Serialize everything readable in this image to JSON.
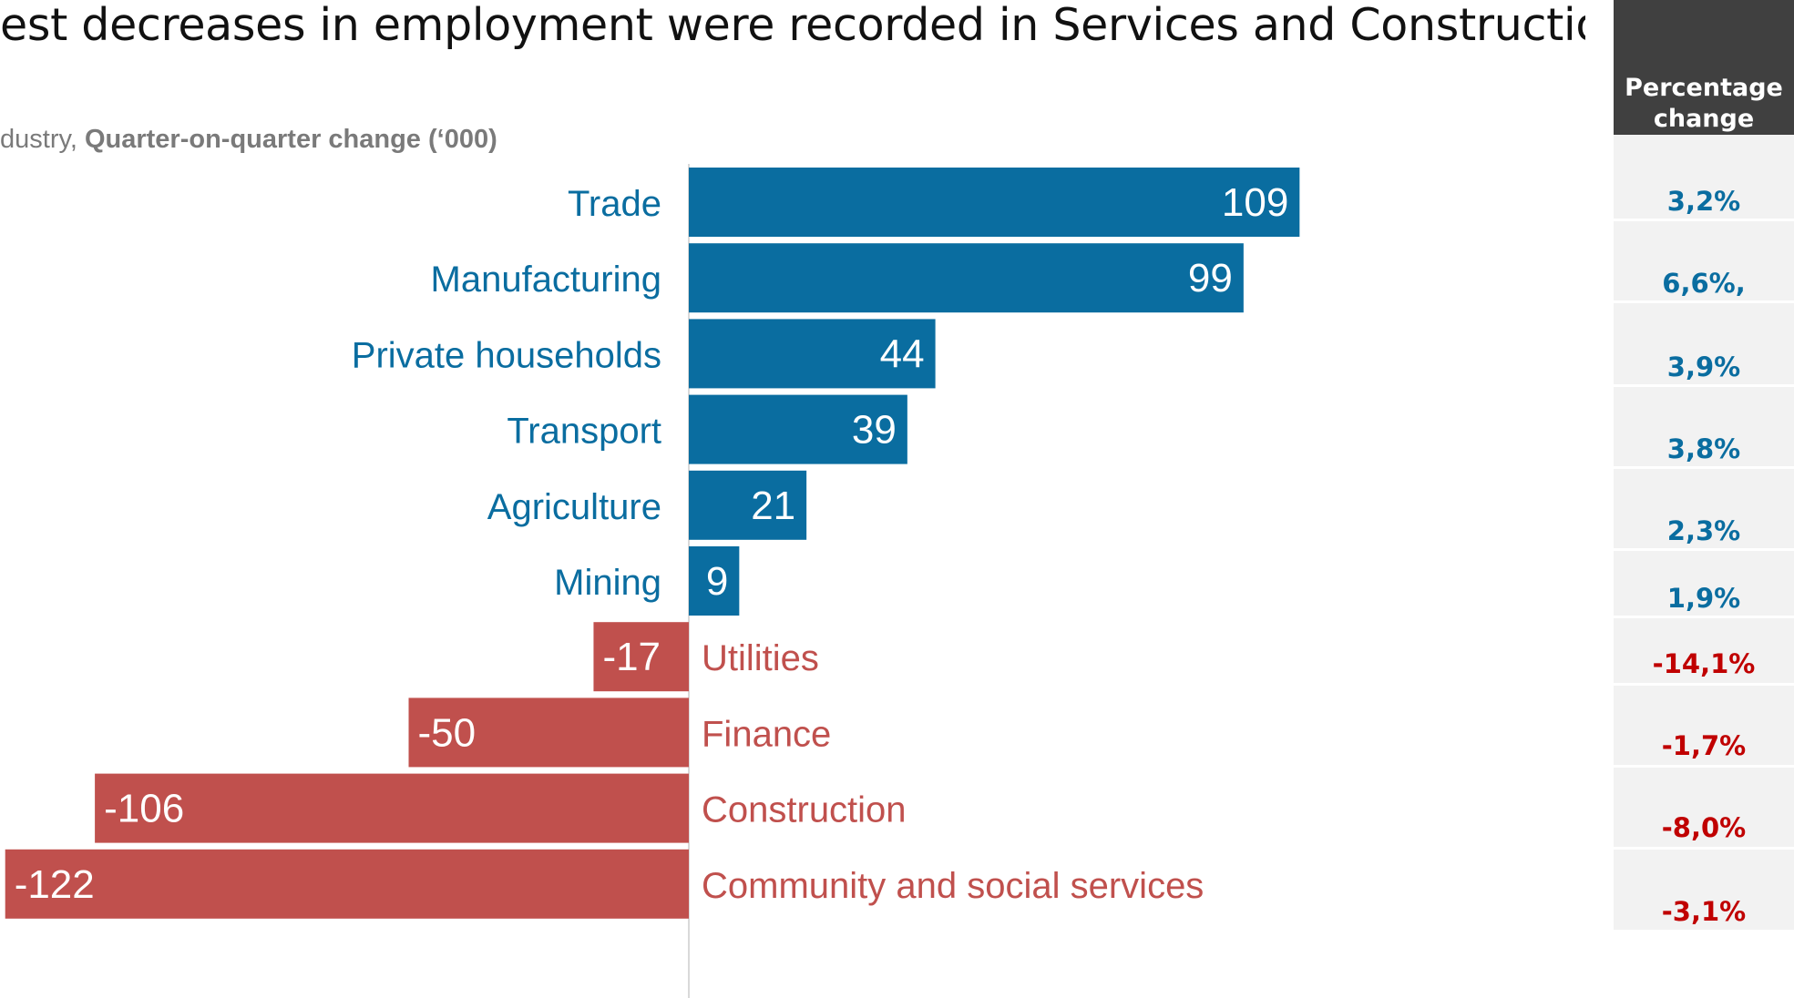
{
  "title": "est decreases in employment were recorded in Services and Construction.",
  "subtitle": {
    "prefix": "dustry, ",
    "bold": "Quarter-on-quarter change (‘000)"
  },
  "colors": {
    "positive": "#0a6da0",
    "negative": "#c0504d",
    "pct_positive": "#0a6da0",
    "pct_negative": "#c00000",
    "header_bg": "#404040",
    "panel_bg": "#f2f2f2"
  },
  "pct_header": {
    "line1": "Percentage",
    "line2": "change"
  },
  "chart_data": {
    "type": "bar",
    "orientation": "horizontal",
    "categories": [
      "Trade",
      "Manufacturing",
      "Private households",
      "Transport",
      "Agriculture",
      "Mining",
      "Utilities",
      "Finance",
      "Construction",
      "Community and social services"
    ],
    "values": [
      109,
      99,
      44,
      39,
      21,
      9,
      -17,
      -50,
      -106,
      -122
    ],
    "data_labels": [
      "109",
      "99",
      "44",
      "39",
      "21",
      "9",
      "-17",
      "-50",
      "-106",
      "-122"
    ],
    "percentage_change": [
      "3,2%",
      "6,6%,",
      "3,9%",
      "3,8%",
      "2,3%",
      "1,9%",
      "-14,1%",
      "-1,7%",
      "-8,0%",
      "-3,1%"
    ],
    "xlim": [
      -122,
      109
    ],
    "grid": false,
    "legend": "none"
  }
}
